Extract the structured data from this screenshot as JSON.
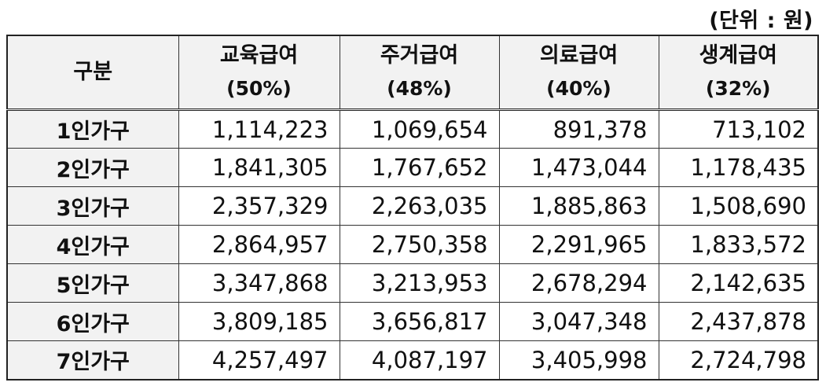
{
  "unit_label": "(단위 : 원)",
  "table": {
    "header": {
      "category": "구분",
      "columns": [
        {
          "name": "교육급여",
          "rate": "(50%)"
        },
        {
          "name": "주거급여",
          "rate": "(48%)"
        },
        {
          "name": "의료급여",
          "rate": "(40%)"
        },
        {
          "name": "생계급여",
          "rate": "(32%)"
        }
      ]
    },
    "rows": [
      {
        "label": "1인가구",
        "values": [
          "1,114,223",
          "1,069,654",
          "891,378",
          "713,102"
        ]
      },
      {
        "label": "2인가구",
        "values": [
          "1,841,305",
          "1,767,652",
          "1,473,044",
          "1,178,435"
        ]
      },
      {
        "label": "3인가구",
        "values": [
          "2,357,329",
          "2,263,035",
          "1,885,863",
          "1,508,690"
        ]
      },
      {
        "label": "4인가구",
        "values": [
          "2,864,957",
          "2,750,358",
          "2,291,965",
          "1,833,572"
        ]
      },
      {
        "label": "5인가구",
        "values": [
          "3,347,868",
          "3,213,953",
          "2,678,294",
          "2,142,635"
        ]
      },
      {
        "label": "6인가구",
        "values": [
          "3,809,185",
          "3,656,817",
          "3,047,348",
          "2,437,878"
        ]
      },
      {
        "label": "7인가구",
        "values": [
          "4,257,497",
          "4,087,197",
          "3,405,998",
          "2,724,798"
        ]
      }
    ]
  }
}
